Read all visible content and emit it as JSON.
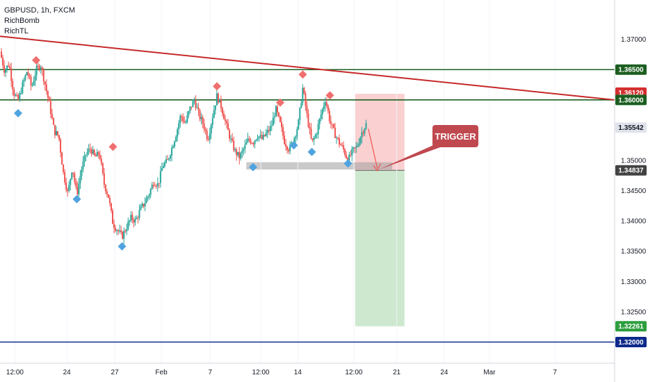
{
  "legend": {
    "symbol": "GBPUSD, 1h, FXCM",
    "indicator_1": "RichBomb",
    "indicator_2": "RichTL"
  },
  "annotation": {
    "label": "TRIGGER",
    "color": "#c0484f"
  },
  "colors": {
    "bull": "#26a69a",
    "bear": "#ef5350",
    "trendline": "#c62828",
    "resistance": "#1b5e20",
    "target_line": "#0d2a8a",
    "stop_zone": "#f9c4c4",
    "profit_zone": "#c8e6c9",
    "marker_top": "#ef6f6f",
    "marker_bottom": "#4fa3e0",
    "support_band": "#9e9e9e"
  },
  "chart_data": {
    "type": "candlestick",
    "title": "GBPUSD, 1h, FXCM",
    "ylim": [
      1.3165,
      1.3765
    ],
    "x_ticks": [
      "12:00",
      "24",
      "27",
      "Feb",
      "7",
      "12:00",
      "14",
      "12:00",
      "21",
      "24",
      "Mar",
      "7"
    ],
    "y_ticks": [
      "1.37000",
      "1.36500",
      "1.36000",
      "1.35500",
      "1.35000",
      "1.34500",
      "1.34000",
      "1.33500",
      "1.33000",
      "1.32500",
      "1.32000"
    ],
    "price_tags": [
      {
        "value": 1.365,
        "label": "1.36500",
        "style": "resistance"
      },
      {
        "value": 1.3612,
        "label": "1.36120",
        "style": "trendline"
      },
      {
        "value": 1.36,
        "label": "1.36000",
        "style": "resistance"
      },
      {
        "value": 1.35542,
        "label": "1.35542",
        "style": "current"
      },
      {
        "value": 1.34837,
        "label": "1.34837",
        "style": "entry"
      },
      {
        "value": 1.32261,
        "label": "1.32261",
        "style": "target"
      },
      {
        "value": 1.32,
        "label": "1.32000",
        "style": "support"
      }
    ],
    "horizontal_lines": [
      {
        "value": 1.365,
        "style": "resistance"
      },
      {
        "value": 1.36,
        "style": "resistance"
      },
      {
        "value": 1.32,
        "style": "support"
      }
    ],
    "trendline": {
      "from": [
        0,
        1.3705
      ],
      "to": [
        1,
        1.36
      ]
    },
    "position": {
      "entry": 1.34837,
      "stop": 1.361,
      "target": 1.32261
    },
    "support_band": [
      1.3485,
      1.3497
    ],
    "price_path": [
      [
        0.0,
        1.368
      ],
      [
        0.01,
        1.3648
      ],
      [
        0.02,
        1.366
      ],
      [
        0.03,
        1.3612
      ],
      [
        0.04,
        1.3598
      ],
      [
        0.05,
        1.3625
      ],
      [
        0.06,
        1.3648
      ],
      [
        0.07,
        1.362
      ],
      [
        0.08,
        1.365
      ],
      [
        0.09,
        1.3658
      ],
      [
        0.1,
        1.3625
      ],
      [
        0.11,
        1.359
      ],
      [
        0.12,
        1.3548
      ],
      [
        0.13,
        1.354
      ],
      [
        0.14,
        1.348
      ],
      [
        0.15,
        1.3445
      ],
      [
        0.16,
        1.349
      ],
      [
        0.17,
        1.3443
      ],
      [
        0.18,
        1.3485
      ],
      [
        0.19,
        1.351
      ],
      [
        0.2,
        1.352
      ],
      [
        0.21,
        1.3505
      ],
      [
        0.22,
        1.3512
      ],
      [
        0.23,
        1.3462
      ],
      [
        0.24,
        1.344
      ],
      [
        0.25,
        1.3395
      ],
      [
        0.26,
        1.3385
      ],
      [
        0.27,
        1.3374
      ],
      [
        0.28,
        1.339
      ],
      [
        0.29,
        1.3405
      ],
      [
        0.3,
        1.34
      ],
      [
        0.31,
        1.3418
      ],
      [
        0.32,
        1.343
      ],
      [
        0.33,
        1.3445
      ],
      [
        0.34,
        1.3465
      ],
      [
        0.35,
        1.346
      ],
      [
        0.36,
        1.3492
      ],
      [
        0.37,
        1.3498
      ],
      [
        0.38,
        1.352
      ],
      [
        0.39,
        1.3545
      ],
      [
        0.4,
        1.3575
      ],
      [
        0.41,
        1.356
      ],
      [
        0.42,
        1.3585
      ],
      [
        0.43,
        1.36
      ],
      [
        0.44,
        1.3575
      ],
      [
        0.45,
        1.356
      ],
      [
        0.46,
        1.3535
      ],
      [
        0.47,
        1.3572
      ],
      [
        0.48,
        1.3607
      ],
      [
        0.49,
        1.3588
      ],
      [
        0.5,
        1.356
      ],
      [
        0.51,
        1.3535
      ],
      [
        0.52,
        1.3515
      ],
      [
        0.53,
        1.3505
      ],
      [
        0.54,
        1.352
      ],
      [
        0.55,
        1.3535
      ],
      [
        0.56,
        1.353
      ],
      [
        0.57,
        1.3542
      ],
      [
        0.58,
        1.3535
      ],
      [
        0.59,
        1.3545
      ],
      [
        0.6,
        1.3555
      ],
      [
        0.61,
        1.3585
      ],
      [
        0.62,
        1.356
      ],
      [
        0.63,
        1.353
      ],
      [
        0.64,
        1.3518
      ],
      [
        0.65,
        1.3535
      ],
      [
        0.66,
        1.356
      ],
      [
        0.67,
        1.362
      ],
      [
        0.68,
        1.357
      ],
      [
        0.69,
        1.3528
      ],
      [
        0.7,
        1.3545
      ],
      [
        0.71,
        1.3575
      ],
      [
        0.72,
        1.3602
      ],
      [
        0.73,
        1.3565
      ],
      [
        0.74,
        1.3545
      ],
      [
        0.75,
        1.353
      ],
      [
        0.76,
        1.3518
      ],
      [
        0.77,
        1.35
      ],
      [
        0.78,
        1.3515
      ],
      [
        0.79,
        1.3523
      ],
      [
        0.8,
        1.3545
      ],
      [
        0.81,
        1.356
      ]
    ],
    "swing_highs": [
      {
        "t": 0.08,
        "v": 1.36655
      },
      {
        "t": 0.25,
        "v": 1.35225
      },
      {
        "t": 0.48,
        "v": 1.36225
      },
      {
        "t": 0.62,
        "v": 1.35955
      },
      {
        "t": 0.67,
        "v": 1.3642
      },
      {
        "t": 0.73,
        "v": 1.36075
      }
    ],
    "swing_lows": [
      {
        "t": 0.04,
        "v": 1.3578
      },
      {
        "t": 0.17,
        "v": 1.3436
      },
      {
        "t": 0.27,
        "v": 1.3358
      },
      {
        "t": 0.56,
        "v": 1.3489
      },
      {
        "t": 0.65,
        "v": 1.3525
      },
      {
        "t": 0.69,
        "v": 1.3514
      },
      {
        "t": 0.77,
        "v": 1.3495
      }
    ]
  }
}
